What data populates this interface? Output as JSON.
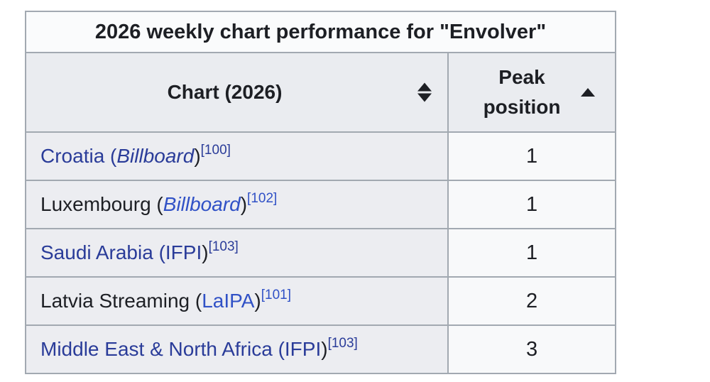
{
  "colors": {
    "page_bg": "#ffffff",
    "border": "#a2a9b1",
    "header_bg": "#eaecf0",
    "rowheader_bg": "#ecedf1",
    "cell_bg": "#f8f9fa",
    "title_bg": "#fafbfc",
    "text": "#1d1f24",
    "link_dark": "#2a3c99",
    "link_bright": "#3051c6"
  },
  "table": {
    "title": "2026 weekly chart performance for \"Envolver\"",
    "columns": [
      {
        "label": "Chart (2026)",
        "sortable": true,
        "sort_state": "unsorted"
      },
      {
        "label": "Peak position",
        "sortable": true,
        "sort_state": "ascending"
      }
    ],
    "rows": [
      {
        "chart": [
          {
            "text": "Croatia (",
            "link": true,
            "italic": false,
            "tone": "dark"
          },
          {
            "text": "Billboard",
            "link": true,
            "italic": true,
            "tone": "dark"
          },
          {
            "text": ")",
            "link": false,
            "italic": false
          }
        ],
        "reference": "[100]",
        "reference_tone": "dark",
        "peak": "1"
      },
      {
        "chart": [
          {
            "text": "Luxembourg (",
            "link": false,
            "italic": false
          },
          {
            "text": "Billboard",
            "link": true,
            "italic": true,
            "tone": "bright"
          },
          {
            "text": ")",
            "link": false,
            "italic": false
          }
        ],
        "reference": "[102]",
        "reference_tone": "bright",
        "peak": "1"
      },
      {
        "chart": [
          {
            "text": "Saudi Arabia (IFPI",
            "link": true,
            "italic": false,
            "tone": "dark"
          },
          {
            "text": ")",
            "link": false,
            "italic": false
          }
        ],
        "reference": "[103]",
        "reference_tone": "dark",
        "peak": "1"
      },
      {
        "chart": [
          {
            "text": "Latvia Streaming (",
            "link": false,
            "italic": false
          },
          {
            "text": "LaIPA",
            "link": true,
            "italic": false,
            "tone": "bright"
          },
          {
            "text": ")",
            "link": false,
            "italic": false
          }
        ],
        "reference": "[101]",
        "reference_tone": "bright",
        "peak": "2"
      },
      {
        "chart": [
          {
            "text": "Middle East & North Africa (IFPI",
            "link": true,
            "italic": false,
            "tone": "dark"
          },
          {
            "text": ")",
            "link": false,
            "italic": false
          }
        ],
        "reference": "[103]",
        "reference_tone": "dark",
        "peak": "3"
      }
    ]
  }
}
